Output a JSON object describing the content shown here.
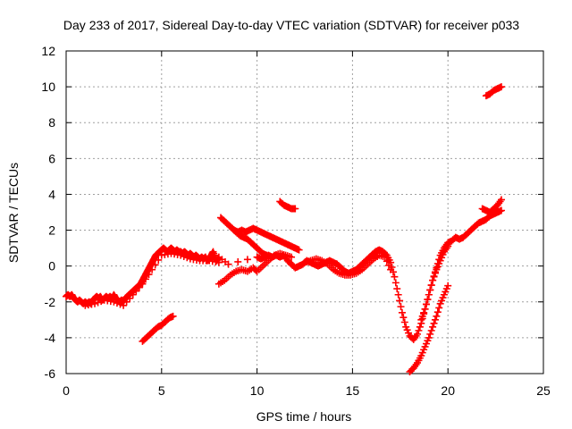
{
  "chart_data": {
    "type": "scatter",
    "title": "Day 233 of 2017, Sidereal Day-to-day VTEC variation (SDTVAR) for receiver p033",
    "xlabel": "GPS time / hours",
    "ylabel": "SDTVAR / TECUs",
    "xlim": [
      0,
      25
    ],
    "ylim": [
      -6,
      12
    ],
    "xticks": [
      "0",
      "5",
      "10",
      "15",
      "20",
      "25"
    ],
    "yticks": [
      "-6",
      "-4",
      "-2",
      "0",
      "2",
      "4",
      "6",
      "8",
      "10",
      "12"
    ],
    "grid": true,
    "marker": "plus",
    "color": "#ff0000",
    "series": [
      {
        "points": [
          [
            0.0,
            -1.7
          ],
          [
            0.1,
            -1.6
          ],
          [
            0.2,
            -1.7
          ],
          [
            0.3,
            -1.6
          ],
          [
            0.4,
            -1.8
          ],
          [
            0.5,
            -1.9
          ],
          [
            0.6,
            -2.0
          ],
          [
            0.7,
            -1.9
          ],
          [
            0.8,
            -2.0
          ],
          [
            0.9,
            -2.1
          ],
          [
            1.0,
            -2.0
          ],
          [
            1.1,
            -2.1
          ],
          [
            1.2,
            -2.0
          ],
          [
            1.3,
            -2.1
          ],
          [
            1.4,
            -1.9
          ],
          [
            1.5,
            -1.8
          ],
          [
            1.6,
            -1.7
          ],
          [
            1.7,
            -1.8
          ],
          [
            1.8,
            -1.7
          ],
          [
            1.9,
            -1.9
          ],
          [
            2.0,
            -1.8
          ],
          [
            2.1,
            -1.7
          ],
          [
            2.2,
            -1.8
          ],
          [
            2.3,
            -1.7
          ],
          [
            2.4,
            -1.8
          ],
          [
            2.5,
            -1.6
          ],
          [
            2.6,
            -1.8
          ],
          [
            2.7,
            -1.9
          ],
          [
            2.8,
            -2.0
          ],
          [
            2.9,
            -1.9
          ],
          [
            3.0,
            -2.0
          ],
          [
            3.1,
            -1.8
          ],
          [
            3.2,
            -1.7
          ],
          [
            3.3,
            -1.6
          ],
          [
            3.4,
            -1.5
          ],
          [
            3.5,
            -1.4
          ],
          [
            3.6,
            -1.3
          ],
          [
            3.7,
            -1.2
          ],
          [
            3.8,
            -1.1
          ],
          [
            3.9,
            -1.0
          ],
          [
            4.0,
            -0.8
          ],
          [
            4.1,
            -0.6
          ],
          [
            4.2,
            -0.4
          ],
          [
            4.3,
            -0.2
          ],
          [
            4.4,
            0.0
          ],
          [
            4.5,
            0.2
          ],
          [
            4.6,
            0.4
          ],
          [
            4.7,
            0.6
          ],
          [
            4.8,
            0.7
          ],
          [
            4.9,
            0.8
          ],
          [
            5.0,
            0.9
          ],
          [
            5.1,
            1.0
          ],
          [
            5.2,
            0.9
          ],
          [
            5.3,
            0.8
          ],
          [
            5.4,
            0.9
          ],
          [
            5.5,
            1.0
          ],
          [
            5.6,
            0.9
          ],
          [
            5.7,
            0.8
          ],
          [
            5.8,
            0.9
          ],
          [
            5.9,
            0.8
          ],
          [
            6.0,
            0.8
          ],
          [
            6.1,
            0.7
          ],
          [
            6.2,
            0.8
          ],
          [
            6.3,
            0.7
          ],
          [
            6.4,
            0.6
          ],
          [
            6.5,
            0.7
          ],
          [
            6.6,
            0.6
          ],
          [
            6.7,
            0.5
          ],
          [
            6.8,
            0.6
          ],
          [
            6.9,
            0.5
          ],
          [
            7.0,
            0.4
          ],
          [
            7.1,
            0.5
          ],
          [
            7.2,
            0.4
          ],
          [
            7.3,
            0.5
          ],
          [
            7.4,
            0.3
          ],
          [
            7.5,
            0.4
          ],
          [
            7.6,
            0.6
          ],
          [
            7.7,
            0.8
          ],
          [
            7.8,
            0.5
          ],
          [
            7.9,
            0.3
          ],
          [
            8.0,
            0.5
          ],
          [
            8.5,
            0.1
          ],
          [
            10.0,
            0.5
          ],
          [
            10.2,
            0.4
          ],
          [
            10.4,
            0.5
          ],
          [
            10.6,
            0.6
          ],
          [
            10.8,
            0.5
          ],
          [
            11.0,
            0.6
          ],
          [
            11.2,
            0.5
          ],
          [
            11.4,
            0.6
          ],
          [
            11.6,
            0.3
          ],
          [
            11.8,
            0.1
          ],
          [
            12.0,
            -0.1
          ],
          [
            12.2,
            0.0
          ],
          [
            12.4,
            0.1
          ],
          [
            12.6,
            0.3
          ],
          [
            12.8,
            0.2
          ],
          [
            13.0,
            0.1
          ],
          [
            13.2,
            0.0
          ],
          [
            13.4,
            0.1
          ],
          [
            13.6,
            0.2
          ],
          [
            13.8,
            0.3
          ],
          [
            14.0,
            0.2
          ],
          [
            14.2,
            0.1
          ],
          [
            14.4,
            -0.1
          ],
          [
            14.6,
            -0.3
          ],
          [
            14.8,
            -0.4
          ],
          [
            15.0,
            -0.3
          ],
          [
            15.2,
            -0.2
          ],
          [
            15.4,
            0.0
          ],
          [
            15.6,
            0.2
          ],
          [
            15.8,
            0.4
          ],
          [
            16.0,
            0.6
          ],
          [
            16.2,
            0.8
          ],
          [
            16.4,
            0.9
          ],
          [
            16.6,
            0.8
          ],
          [
            16.8,
            0.6
          ],
          [
            17.0,
            0.2
          ],
          [
            17.2,
            -0.6
          ],
          [
            17.4,
            -1.6
          ],
          [
            17.6,
            -2.6
          ],
          [
            17.8,
            -3.4
          ],
          [
            18.0,
            -3.9
          ],
          [
            18.2,
            -4.1
          ],
          [
            18.4,
            -3.8
          ],
          [
            18.6,
            -3.2
          ],
          [
            18.8,
            -2.4
          ],
          [
            19.0,
            -1.6
          ],
          [
            19.2,
            -0.8
          ],
          [
            19.4,
            -0.1
          ],
          [
            19.6,
            0.6
          ],
          [
            19.8,
            1.0
          ],
          [
            20.0,
            1.3
          ],
          [
            20.2,
            1.4
          ],
          [
            20.4,
            1.6
          ],
          [
            20.6,
            1.5
          ],
          [
            20.8,
            1.6
          ],
          [
            21.0,
            1.8
          ],
          [
            21.2,
            2.0
          ],
          [
            21.4,
            2.2
          ],
          [
            21.6,
            2.4
          ],
          [
            21.8,
            2.5
          ],
          [
            22.0,
            2.6
          ],
          [
            22.2,
            2.8
          ],
          [
            22.4,
            2.9
          ],
          [
            22.6,
            3.0
          ],
          [
            22.8,
            3.1
          ]
        ]
      },
      {
        "points": [
          [
            1.0,
            -2.2
          ],
          [
            1.5,
            -2.1
          ],
          [
            2.0,
            -1.9
          ],
          [
            2.5,
            -2.0
          ],
          [
            3.0,
            -2.2
          ],
          [
            3.5,
            -1.6
          ],
          [
            4.0,
            -1.0
          ],
          [
            4.5,
            -0.2
          ],
          [
            5.0,
            0.6
          ],
          [
            5.5,
            0.7
          ],
          [
            6.0,
            0.6
          ],
          [
            6.5,
            0.4
          ],
          [
            7.0,
            0.3
          ],
          [
            7.5,
            0.3
          ],
          [
            8.0,
            0.2
          ]
        ]
      },
      {
        "points": [
          [
            4.0,
            -4.2
          ],
          [
            4.2,
            -4.0
          ],
          [
            4.4,
            -3.8
          ],
          [
            4.6,
            -3.6
          ],
          [
            4.8,
            -3.4
          ],
          [
            5.0,
            -3.3
          ],
          [
            5.2,
            -3.1
          ],
          [
            5.4,
            -2.9
          ],
          [
            5.6,
            -2.8
          ]
        ]
      },
      {
        "points": [
          [
            8.1,
            2.7
          ],
          [
            8.3,
            2.5
          ],
          [
            8.5,
            2.3
          ],
          [
            8.7,
            2.1
          ],
          [
            8.9,
            1.9
          ],
          [
            9.1,
            1.7
          ],
          [
            9.3,
            1.6
          ],
          [
            9.5,
            1.5
          ],
          [
            9.7,
            1.3
          ],
          [
            9.9,
            1.1
          ],
          [
            10.1,
            0.9
          ],
          [
            10.3,
            0.7
          ],
          [
            10.5,
            0.6
          ]
        ]
      },
      {
        "points": [
          [
            8.8,
            2.0
          ],
          [
            9.0,
            1.9
          ],
          [
            9.2,
            2.0
          ],
          [
            9.4,
            1.9
          ],
          [
            9.6,
            2.0
          ],
          [
            9.8,
            2.1
          ],
          [
            10.0,
            2.0
          ],
          [
            10.2,
            1.9
          ],
          [
            10.4,
            1.8
          ],
          [
            10.6,
            1.7
          ],
          [
            10.8,
            1.6
          ],
          [
            11.0,
            1.5
          ],
          [
            11.2,
            1.4
          ],
          [
            11.4,
            1.3
          ],
          [
            11.6,
            1.2
          ],
          [
            11.8,
            1.1
          ],
          [
            12.0,
            1.0
          ],
          [
            12.2,
            0.9
          ]
        ]
      },
      {
        "points": [
          [
            8.0,
            -1.0
          ],
          [
            8.3,
            -0.8
          ],
          [
            8.6,
            -0.5
          ],
          [
            8.9,
            -0.3
          ],
          [
            9.2,
            -0.2
          ],
          [
            9.5,
            -0.3
          ],
          [
            9.8,
            -0.1
          ],
          [
            10.0,
            -0.3
          ],
          [
            10.3,
            0.0
          ],
          [
            10.6,
            0.3
          ],
          [
            10.9,
            0.6
          ],
          [
            11.2,
            0.7
          ],
          [
            11.5,
            0.6
          ],
          [
            11.8,
            0.5
          ]
        ]
      },
      {
        "points": [
          [
            11.2,
            3.6
          ],
          [
            11.4,
            3.4
          ],
          [
            11.6,
            3.3
          ],
          [
            11.8,
            3.2
          ],
          [
            12.0,
            3.2
          ]
        ]
      },
      {
        "points": [
          [
            12.5,
            0.2
          ],
          [
            12.8,
            0.3
          ],
          [
            13.1,
            0.4
          ],
          [
            13.4,
            0.3
          ],
          [
            13.7,
            0.1
          ],
          [
            14.0,
            -0.2
          ],
          [
            14.3,
            -0.4
          ],
          [
            14.6,
            -0.5
          ],
          [
            14.9,
            -0.5
          ],
          [
            15.2,
            -0.4
          ],
          [
            15.5,
            -0.2
          ],
          [
            15.8,
            0.1
          ],
          [
            16.1,
            0.4
          ],
          [
            16.4,
            0.6
          ],
          [
            16.7,
            0.5
          ],
          [
            17.0,
            -0.2
          ]
        ]
      },
      {
        "points": [
          [
            18.0,
            -5.9
          ],
          [
            18.2,
            -5.7
          ],
          [
            18.4,
            -5.4
          ],
          [
            18.6,
            -5.0
          ],
          [
            18.8,
            -4.5
          ],
          [
            19.0,
            -4.0
          ],
          [
            19.2,
            -3.4
          ],
          [
            19.4,
            -2.8
          ],
          [
            19.6,
            -2.1
          ],
          [
            19.8,
            -1.6
          ],
          [
            20.0,
            -1.1
          ]
        ]
      },
      {
        "points": [
          [
            18.6,
            -3.0
          ],
          [
            18.8,
            -2.4
          ],
          [
            19.0,
            -1.6
          ],
          [
            19.2,
            -0.8
          ],
          [
            19.4,
            -0.2
          ],
          [
            19.6,
            0.3
          ],
          [
            19.8,
            0.8
          ],
          [
            20.0,
            1.1
          ]
        ]
      },
      {
        "points": [
          [
            21.8,
            3.2
          ],
          [
            22.0,
            3.1
          ],
          [
            22.2,
            3.0
          ],
          [
            22.4,
            3.2
          ],
          [
            22.6,
            3.4
          ],
          [
            22.8,
            3.7
          ]
        ]
      },
      {
        "points": [
          [
            22.0,
            9.5
          ],
          [
            22.2,
            9.6
          ],
          [
            22.4,
            9.8
          ],
          [
            22.6,
            9.9
          ],
          [
            22.8,
            10.0
          ]
        ]
      }
    ]
  }
}
